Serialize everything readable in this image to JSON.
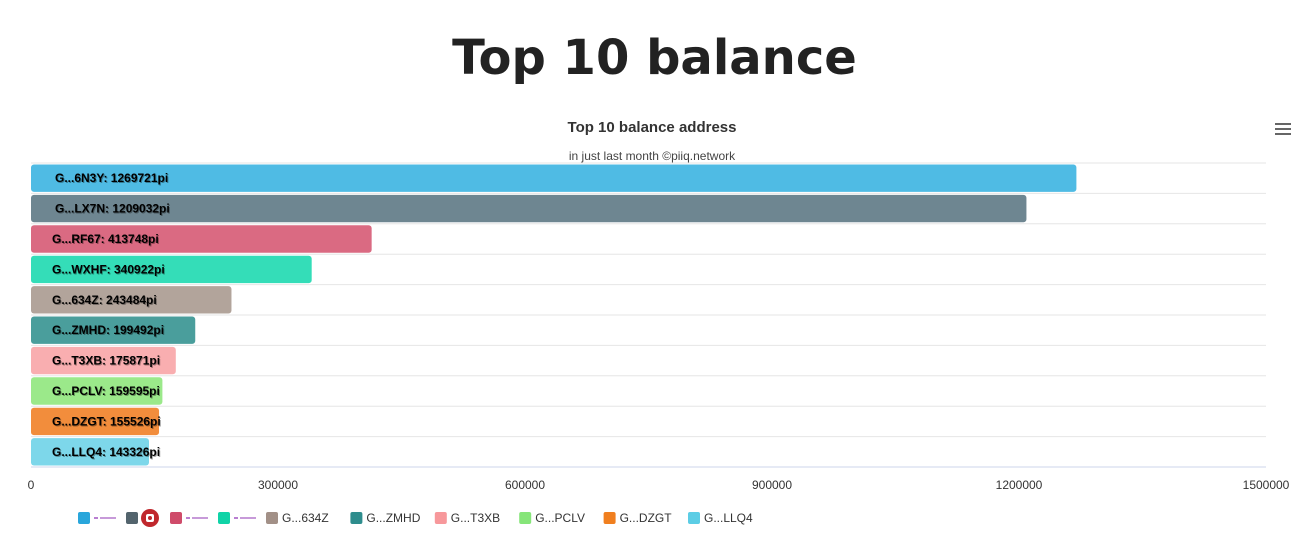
{
  "page": {
    "title": "Top 10 balance"
  },
  "toolbar": {
    "menu_icon": "hamburger-menu-icon"
  },
  "chart_data": {
    "type": "bar",
    "orientation": "horizontal",
    "title": "Top 10 balance address",
    "subtitle": "in just last month ©piiq.network",
    "xlabel": "",
    "ylabel": "",
    "xlim": [
      0,
      1500000
    ],
    "xticks": [
      "0",
      "300000",
      "600000",
      "900000",
      "1200000",
      "1500000"
    ],
    "grid": true,
    "legend_position": "bottom-left",
    "value_suffix": "pi",
    "categories": [
      "G...6N3Y",
      "G...LX7N",
      "G...RF67",
      "G...WXHF",
      "G...634Z",
      "G...ZMHD",
      "G...T3XB",
      "G...PCLV",
      "G...DZGT",
      "G...LLQ4"
    ],
    "values": [
      1269721,
      1209032,
      413748,
      340922,
      243484,
      199492,
      175871,
      159595,
      155526,
      143326
    ],
    "colors": [
      "#4FBBE4",
      "#6E8691",
      "#DA6A82",
      "#34DDB8",
      "#B2A49B",
      "#4A9E9C",
      "#F9AEB0",
      "#9BE98A",
      "#F28D3C",
      "#7DD7EA"
    ],
    "legend": [
      {
        "label": "",
        "icon": "pichain-logo",
        "color": "#29A6DB"
      },
      {
        "label": "",
        "icon": "dragon-logo",
        "color": "#53646D"
      },
      {
        "label": "",
        "icon": "pichain-logo",
        "color": "#CF4B6A"
      },
      {
        "label": "",
        "icon": "pichain-logo",
        "color": "#10D3A7"
      },
      {
        "label": "G...634Z",
        "color": "#A29087"
      },
      {
        "label": "G...ZMHD",
        "color": "#2E8D8D"
      },
      {
        "label": "G...T3XB",
        "color": "#F7989B"
      },
      {
        "label": "G...PCLV",
        "color": "#86E579"
      },
      {
        "label": "G...DZGT",
        "color": "#F07F1F"
      },
      {
        "label": "G...LLQ4",
        "color": "#5CCDE5"
      }
    ]
  }
}
